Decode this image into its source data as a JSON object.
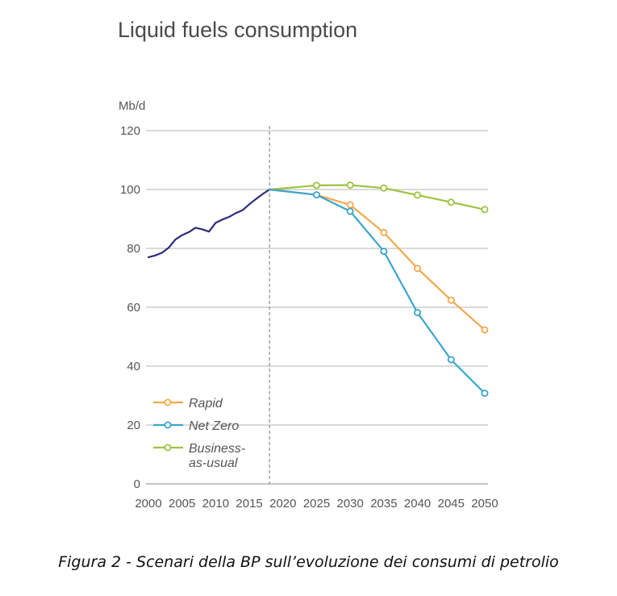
{
  "chart_data": {
    "type": "line",
    "title": "Liquid fuels consumption",
    "ylabel": "Mb/d",
    "xlabel": "",
    "xlim": [
      2000,
      2050
    ],
    "ylim": [
      0,
      120
    ],
    "x_ticks": [
      2000,
      2005,
      2010,
      2015,
      2020,
      2025,
      2030,
      2035,
      2040,
      2045,
      2050
    ],
    "y_ticks": [
      0,
      20,
      40,
      60,
      80,
      100,
      120
    ],
    "grid": "horizontal",
    "vertical_marker_x": 2018,
    "legend_position": "bottom-left",
    "series": [
      {
        "key": "historical",
        "color": "#2b2d7c",
        "markers": false,
        "points": [
          [
            2000,
            77
          ],
          [
            2001,
            77.6
          ],
          [
            2002,
            78.5
          ],
          [
            2003,
            80.2
          ],
          [
            2004,
            83
          ],
          [
            2005,
            84.5
          ],
          [
            2006,
            85.5
          ],
          [
            2007,
            87
          ],
          [
            2008,
            86.5
          ],
          [
            2009,
            85.7
          ],
          [
            2010,
            88.7
          ],
          [
            2011,
            89.8
          ],
          [
            2012,
            90.7
          ],
          [
            2013,
            92
          ],
          [
            2014,
            93
          ],
          [
            2015,
            95
          ],
          [
            2016,
            96.8
          ],
          [
            2017,
            98.5
          ],
          [
            2018,
            100
          ]
        ]
      },
      {
        "key": "bau",
        "name": "Business-\nas-usual",
        "color": "#9cc440",
        "markers": true,
        "points": [
          [
            2018,
            100
          ],
          [
            2025,
            101.4
          ],
          [
            2030,
            101.5
          ],
          [
            2035,
            100.5
          ],
          [
            2040,
            98.1
          ],
          [
            2045,
            95.7
          ],
          [
            2050,
            93.2
          ]
        ],
        "marker_points": [
          [
            2025,
            101.4
          ],
          [
            2030,
            101.5
          ],
          [
            2035,
            100.5
          ],
          [
            2040,
            98.1
          ],
          [
            2045,
            95.7
          ],
          [
            2050,
            93.2
          ]
        ]
      },
      {
        "key": "rapid",
        "name": "Rapid",
        "color": "#f2a84c",
        "markers": true,
        "points": [
          [
            2018,
            100
          ],
          [
            2025,
            98.2
          ],
          [
            2030,
            94.8
          ],
          [
            2035,
            85.4
          ],
          [
            2040,
            73.2
          ],
          [
            2045,
            62.4
          ],
          [
            2050,
            52.3
          ]
        ],
        "marker_points": [
          [
            2030,
            94.8
          ],
          [
            2035,
            85.4
          ],
          [
            2040,
            73.2
          ],
          [
            2045,
            62.4
          ],
          [
            2050,
            52.3
          ]
        ]
      },
      {
        "key": "netzero",
        "name": "Net Zero",
        "color": "#3aa6cc",
        "markers": true,
        "points": [
          [
            2018,
            100
          ],
          [
            2025,
            98.2
          ],
          [
            2030,
            92.6
          ],
          [
            2035,
            79
          ],
          [
            2040,
            58.2
          ],
          [
            2045,
            42.2
          ],
          [
            2050,
            30.8
          ]
        ],
        "marker_points": [
          [
            2025,
            98.2
          ],
          [
            2030,
            92.6
          ],
          [
            2035,
            79
          ],
          [
            2040,
            58.2
          ],
          [
            2045,
            42.2
          ],
          [
            2050,
            30.8
          ]
        ]
      }
    ],
    "legend": [
      {
        "label": "Rapid",
        "color": "#f2a84c"
      },
      {
        "label": "Net Zero",
        "color": "#3aa6cc"
      },
      {
        "label": "Business-\nas-usual",
        "color": "#9cc440"
      }
    ],
    "colors": {
      "grid": "#b5b5b5",
      "axis_text": "#555555",
      "marker_line": "#777777"
    }
  },
  "caption": "Figura 2 - Scenari della BP sull’evoluzione dei consumi di petrolio"
}
